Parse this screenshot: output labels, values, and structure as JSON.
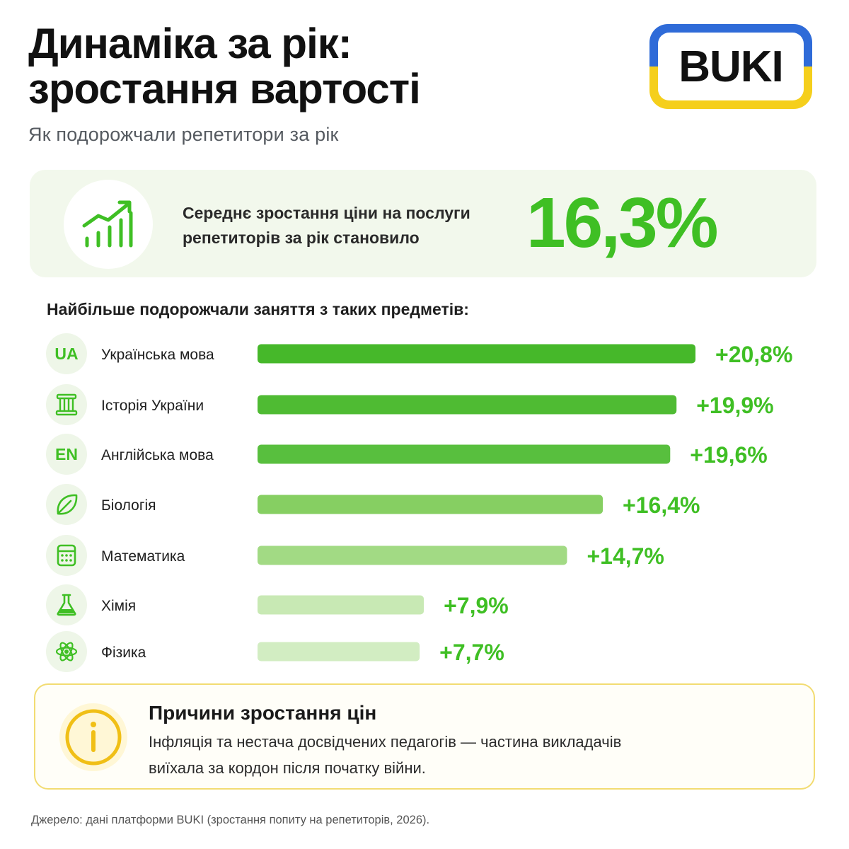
{
  "header": {
    "title_line1": "Динаміка за рік:",
    "title_line2": "зростання вартості",
    "subtitle": "Як подорожчали репетитори за рік"
  },
  "logo": {
    "text": "BUKI",
    "colors": {
      "top": "#2f6bd8",
      "bottom": "#f5cf1c"
    }
  },
  "summary": {
    "icon": "growth-chart-icon",
    "text_line1": "Середнє зростання ціни на послуги",
    "text_line2": "репетиторів за рік становило",
    "value": "16,3%"
  },
  "section_title": "Найбільше подорожчали заняття з таких предметів:",
  "chart_data": {
    "type": "bar",
    "orientation": "horizontal",
    "categories": [
      "Українська мова",
      "Історія України",
      "Англійська мова",
      "Біологія",
      "Математика",
      "Хімія",
      "Фізика"
    ],
    "values": [
      20.8,
      19.9,
      19.6,
      16.4,
      14.7,
      7.9,
      7.7
    ],
    "data_labels": [
      "+20,8%",
      "+19,9%",
      "+19,6%",
      "+16,4%",
      "+14,7%",
      "+7,9%",
      "+7,7%"
    ],
    "icons": [
      {
        "kind": "text",
        "label": "UA"
      },
      {
        "kind": "svg",
        "name": "columns-icon"
      },
      {
        "kind": "text",
        "label": "EN"
      },
      {
        "kind": "svg",
        "name": "leaf-icon"
      },
      {
        "kind": "svg",
        "name": "calculator-icon"
      },
      {
        "kind": "svg",
        "name": "flask-icon"
      },
      {
        "kind": "svg",
        "name": "atom-icon"
      }
    ],
    "bar_colors": [
      "#46b82a",
      "#4fbb33",
      "#58bf3e",
      "#86cf62",
      "#a2da84",
      "#c8e9b4",
      "#d2edc2"
    ],
    "label_color": "#3fbf24",
    "xlim": [
      0,
      20.8
    ]
  },
  "reasons": {
    "icon": "info-icon",
    "heading": "Причини зростання цін",
    "body_line1": "Інфляція та нестача досвідчених педагогів — частина викладачів",
    "body_line2": "виїхала за кордон після початку війни."
  },
  "source": "Джерело: дані платформи BUKI (зростання попиту на репетиторів, 2026)."
}
